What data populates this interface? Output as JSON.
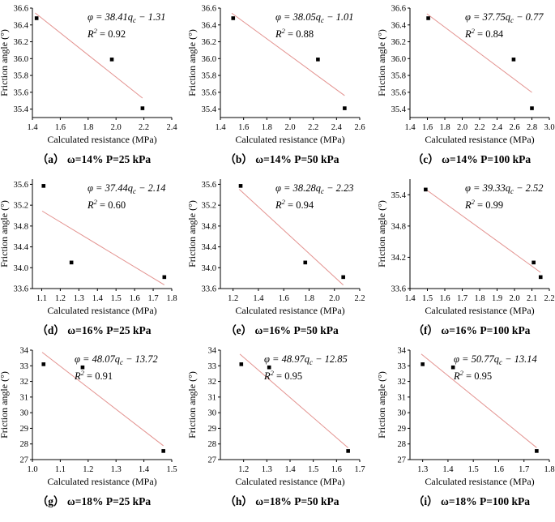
{
  "chart_data": [
    {
      "id": "a",
      "type": "scatter",
      "caption": "（a） ω=14% P=25 kPa",
      "equation": "φ = 38.41q",
      "eq_tail": " − 1.31",
      "r2_value": " = 0.92",
      "x": [
        1.43,
        1.97,
        2.19
      ],
      "y": [
        36.48,
        35.99,
        35.41
      ],
      "fit": {
        "slope": -1.31,
        "intercept": 38.41
      },
      "xlim": [
        1.4,
        2.4
      ],
      "ylim": [
        35.3,
        36.6
      ],
      "xticks": [
        "1.4",
        "1.6",
        "1.8",
        "2.0",
        "2.2",
        "2.4"
      ],
      "yticks": [
        "35.4",
        "35.6",
        "35.8",
        "36.0",
        "36.2",
        "36.4",
        "36.6"
      ],
      "xlabel": "Calculated resistance (MPa)",
      "ylabel": "Friction angle (°)"
    },
    {
      "id": "b",
      "type": "scatter",
      "caption": "（b） ω=14% P=50 kPa",
      "equation": "φ = 38.05q",
      "eq_tail": " − 1.01",
      "r2_value": " = 0.88",
      "x": [
        1.51,
        2.24,
        2.47
      ],
      "y": [
        36.48,
        35.99,
        35.41
      ],
      "fit": {
        "slope": -1.01,
        "intercept": 38.05
      },
      "xlim": [
        1.4,
        2.6
      ],
      "ylim": [
        35.3,
        36.6
      ],
      "xticks": [
        "1.4",
        "1.6",
        "1.8",
        "2.0",
        "2.2",
        "2.4",
        "2.6"
      ],
      "yticks": [
        "35.4",
        "35.6",
        "35.8",
        "36.0",
        "36.2",
        "36.4",
        "36.6"
      ],
      "xlabel": "Calculated resistance (MPa)",
      "ylabel": "Friction angle (°)"
    },
    {
      "id": "c",
      "type": "scatter",
      "caption": "（c） ω=14% P=100 kPa",
      "equation": "φ = 37.75q",
      "eq_tail": " − 0.77",
      "r2_value": " = 0.84",
      "x": [
        1.61,
        2.59,
        2.8
      ],
      "y": [
        36.48,
        35.99,
        35.41
      ],
      "fit": {
        "slope": -0.77,
        "intercept": 37.75
      },
      "xlim": [
        1.4,
        3.0
      ],
      "ylim": [
        35.3,
        36.6
      ],
      "xticks": [
        "1.4",
        "1.6",
        "1.8",
        "2.0",
        "2.2",
        "2.4",
        "2.6",
        "2.8",
        "3.0"
      ],
      "yticks": [
        "35.4",
        "35.6",
        "35.8",
        "36.0",
        "36.2",
        "36.4",
        "36.6"
      ],
      "xlabel": "Calculated resistance (MPa)",
      "ylabel": "Friction angle (°)"
    },
    {
      "id": "d",
      "type": "scatter",
      "caption": "（d） ω=16% P=25 kPa",
      "equation": "φ = 37.44q",
      "eq_tail": " − 2.14",
      "r2_value": " = 0.60",
      "x": [
        1.11,
        1.26,
        1.76
      ],
      "y": [
        35.57,
        34.1,
        33.82
      ],
      "fit": {
        "slope": -2.14,
        "intercept": 37.44
      },
      "xlim": [
        1.05,
        1.8
      ],
      "ylim": [
        33.6,
        35.7
      ],
      "xticks": [
        "1.1",
        "1.2",
        "1.3",
        "1.4",
        "1.5",
        "1.6",
        "1.7",
        "1.8"
      ],
      "yticks": [
        "33.6",
        "34.0",
        "34.4",
        "34.8",
        "35.2",
        "35.6"
      ],
      "xlabel": "Calculated resistance (MPa)",
      "ylabel": "Friction angle (°)"
    },
    {
      "id": "e",
      "type": "scatter",
      "caption": "（e） ω=16% P=50 kPa",
      "equation": "φ = 38.28q",
      "eq_tail": " − 2.23",
      "r2_value": " = 0.94",
      "x": [
        1.26,
        1.77,
        2.07
      ],
      "y": [
        35.57,
        34.1,
        33.82
      ],
      "fit": {
        "slope": -2.23,
        "intercept": 38.28
      },
      "xlim": [
        1.1,
        2.2
      ],
      "ylim": [
        33.6,
        35.7
      ],
      "xticks": [
        "1.2",
        "1.4",
        "1.6",
        "1.8",
        "2.0",
        "2.2"
      ],
      "yticks": [
        "33.6",
        "34.0",
        "34.4",
        "34.8",
        "35.2",
        "35.6"
      ],
      "xlabel": "Calculated resistance (MPa)",
      "ylabel": "Friction angle (°)"
    },
    {
      "id": "f",
      "type": "scatter",
      "caption": "（f） ω=16% P=100 kPa",
      "equation": "φ = 39.33q",
      "eq_tail": " − 2.52",
      "r2_value": " = 0.99",
      "x": [
        1.49,
        2.11,
        2.15
      ],
      "y": [
        35.5,
        34.1,
        33.82
      ],
      "fit": {
        "slope": -2.52,
        "intercept": 39.33
      },
      "xlim": [
        1.4,
        2.2
      ],
      "ylim": [
        33.6,
        35.7
      ],
      "xticks": [
        "1.4",
        "1.5",
        "1.6",
        "1.7",
        "1.8",
        "1.9",
        "2.0",
        "2.1",
        "2.2"
      ],
      "yticks": [
        "33.6",
        "34.2",
        "34.8",
        "35.4"
      ],
      "xlabel": "Calculated resistance (MPa)",
      "ylabel": "Friction angle (°)"
    },
    {
      "id": "g",
      "type": "scatter",
      "caption": "（g） ω=18% P=25 kPa",
      "equation": "φ = 48.07q",
      "eq_tail": " − 13.72",
      "r2_value": " = 0.91",
      "x": [
        1.04,
        1.18,
        1.47
      ],
      "y": [
        33.1,
        32.9,
        27.55
      ],
      "fit": {
        "slope": -13.72,
        "intercept": 48.07
      },
      "xlim": [
        1.0,
        1.5
      ],
      "ylim": [
        27,
        34
      ],
      "xticks": [
        "1.0",
        "1.1",
        "1.2",
        "1.3",
        "1.4",
        "1.5"
      ],
      "yticks": [
        "27",
        "28",
        "29",
        "30",
        "31",
        "32",
        "33",
        "34"
      ],
      "xlabel": "Calculated resistance (MPa)",
      "ylabel": "Friction angle (°)"
    },
    {
      "id": "h",
      "type": "scatter",
      "caption": "（h） ω=18% P=50 kPa",
      "equation": "φ = 48.97q",
      "eq_tail": " − 12.85",
      "r2_value": " = 0.95",
      "x": [
        1.19,
        1.31,
        1.65
      ],
      "y": [
        33.1,
        32.9,
        27.55
      ],
      "fit": {
        "slope": -12.85,
        "intercept": 48.97
      },
      "xlim": [
        1.1,
        1.7
      ],
      "ylim": [
        27,
        34
      ],
      "xticks": [
        "1.2",
        "1.3",
        "1.4",
        "1.5",
        "1.6",
        "1.7"
      ],
      "yticks": [
        "27",
        "28",
        "29",
        "30",
        "31",
        "32",
        "33",
        "34"
      ],
      "xlabel": "Calculated resistance (MPa)",
      "ylabel": "Friction angle (°)"
    },
    {
      "id": "i",
      "type": "scatter",
      "caption": "（i） ω=18% P=100 kPa",
      "equation": "φ = 50.77q",
      "eq_tail": " − 13.14",
      "r2_value": " = 0.95",
      "x": [
        1.3,
        1.42,
        1.75
      ],
      "y": [
        33.1,
        32.9,
        27.55
      ],
      "fit": {
        "slope": -13.14,
        "intercept": 50.77
      },
      "xlim": [
        1.25,
        1.8
      ],
      "ylim": [
        27,
        34
      ],
      "xticks": [
        "1.3",
        "1.4",
        "1.5",
        "1.6",
        "1.7",
        "1.8"
      ],
      "yticks": [
        "27",
        "28",
        "29",
        "30",
        "31",
        "32",
        "33",
        "34"
      ],
      "xlabel": "Calculated resistance (MPa)",
      "ylabel": "Friction angle (°)"
    }
  ],
  "symbols": {
    "q_subscript": "c",
    "r_symbol": "R",
    "r_power": "2"
  },
  "colors": {
    "fit_line": "#e3928f",
    "marker": "#000000",
    "axis": "#000000"
  }
}
